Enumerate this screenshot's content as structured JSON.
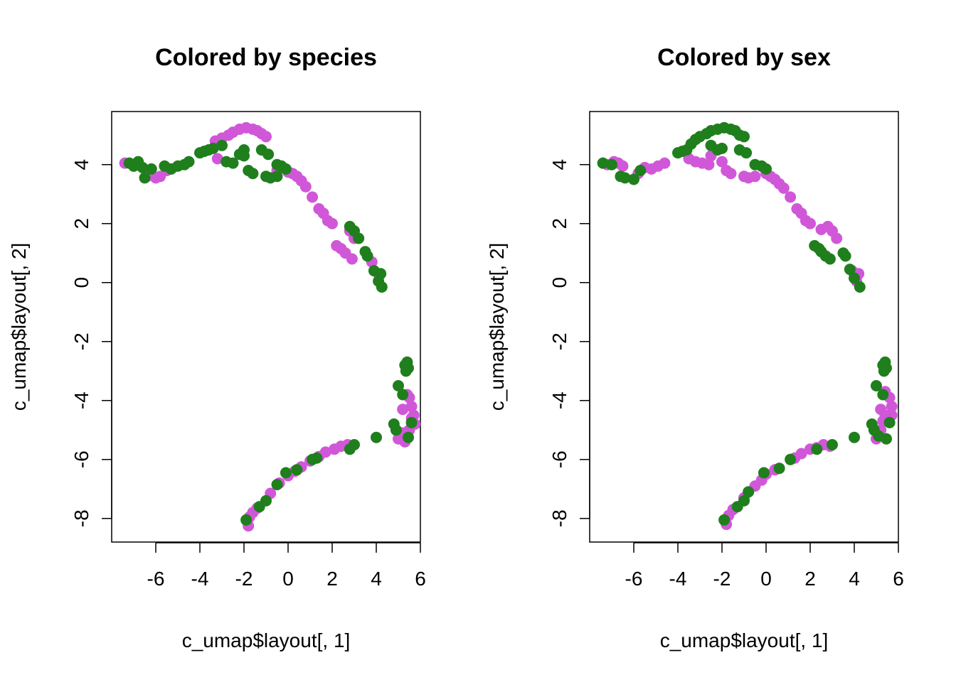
{
  "colors": {
    "magenta": "#d058d8",
    "green": "#1f7f1c"
  },
  "chart_data": [
    {
      "type": "scatter",
      "title": "Colored by species",
      "xlabel": "c_umap$layout[, 1]",
      "ylabel": "c_umap$layout[, 2]",
      "xlim": [
        -8,
        6
      ],
      "ylim": [
        -8.8,
        5.8
      ],
      "xticks": [
        -6,
        -4,
        -2,
        0,
        2,
        4,
        6
      ],
      "yticks": [
        -8,
        -6,
        -4,
        -2,
        0,
        2,
        4
      ],
      "grid": false,
      "series": [
        {
          "color": "#d058d8",
          "points": [
            [
              -7.4,
              4.05
            ],
            [
              -6.4,
              3.6
            ],
            [
              -6.0,
              3.55
            ],
            [
              -5.8,
              3.6
            ],
            [
              -5.5,
              3.8
            ],
            [
              -3.3,
              4.8
            ],
            [
              -3.0,
              4.9
            ],
            [
              -2.7,
              5.0
            ],
            [
              -2.5,
              5.1
            ],
            [
              -3.2,
              4.2
            ],
            [
              -2.2,
              5.2
            ],
            [
              -1.9,
              5.25
            ],
            [
              -1.6,
              5.2
            ],
            [
              -1.4,
              5.15
            ],
            [
              -1.2,
              5.05
            ],
            [
              -1.0,
              4.95
            ],
            [
              -0.5,
              3.8
            ],
            [
              0.0,
              3.75
            ],
            [
              0.2,
              3.7
            ],
            [
              0.4,
              3.6
            ],
            [
              0.6,
              3.45
            ],
            [
              0.8,
              3.25
            ],
            [
              1.1,
              2.9
            ],
            [
              1.4,
              2.5
            ],
            [
              1.6,
              2.35
            ],
            [
              1.8,
              2.1
            ],
            [
              2.0,
              2.0
            ],
            [
              2.2,
              1.25
            ],
            [
              2.4,
              1.15
            ],
            [
              2.6,
              1.0
            ],
            [
              2.9,
              0.8
            ],
            [
              2.8,
              1.75
            ],
            [
              3.0,
              1.5
            ],
            [
              3.8,
              0.7
            ],
            [
              4.1,
              0.3
            ],
            [
              5.2,
              -4.3
            ],
            [
              5.4,
              -3.8
            ],
            [
              5.5,
              -3.9
            ],
            [
              5.6,
              -4.2
            ],
            [
              5.7,
              -4.5
            ],
            [
              5.75,
              -4.8
            ],
            [
              5.5,
              -5.0
            ],
            [
              5.2,
              -5.1
            ],
            [
              5.0,
              -5.3
            ],
            [
              5.3,
              -5.4
            ],
            [
              5.6,
              -4.6
            ],
            [
              -1.8,
              -8.25
            ],
            [
              -1.75,
              -7.95
            ],
            [
              -1.6,
              -7.8
            ],
            [
              -1.4,
              -7.65
            ],
            [
              -0.8,
              -7.15
            ],
            [
              -0.4,
              -6.8
            ],
            [
              0.0,
              -6.55
            ],
            [
              0.3,
              -6.4
            ],
            [
              0.6,
              -6.25
            ],
            [
              1.0,
              -6.05
            ],
            [
              1.4,
              -5.9
            ],
            [
              1.7,
              -5.75
            ],
            [
              2.1,
              -5.65
            ],
            [
              2.4,
              -5.55
            ],
            [
              2.7,
              -5.5
            ]
          ]
        },
        {
          "color": "#1f7f1c",
          "points": [
            [
              -7.2,
              4.05
            ],
            [
              -7.0,
              3.95
            ],
            [
              -6.8,
              4.1
            ],
            [
              -6.6,
              3.9
            ],
            [
              -6.5,
              3.55
            ],
            [
              -6.2,
              3.85
            ],
            [
              -5.6,
              3.95
            ],
            [
              -5.3,
              3.85
            ],
            [
              -5.0,
              3.95
            ],
            [
              -4.7,
              4.0
            ],
            [
              -4.5,
              4.1
            ],
            [
              -4.0,
              4.4
            ],
            [
              -3.8,
              4.45
            ],
            [
              -3.6,
              4.5
            ],
            [
              -3.4,
              4.55
            ],
            [
              -3.0,
              4.65
            ],
            [
              -2.8,
              4.1
            ],
            [
              -2.5,
              4.05
            ],
            [
              -2.2,
              4.35
            ],
            [
              -2.0,
              4.3
            ],
            [
              -2.0,
              4.5
            ],
            [
              -1.8,
              3.8
            ],
            [
              -1.6,
              3.7
            ],
            [
              -1.2,
              4.5
            ],
            [
              -0.9,
              4.35
            ],
            [
              -1.0,
              3.6
            ],
            [
              -0.8,
              3.55
            ],
            [
              -0.5,
              3.6
            ],
            [
              -0.5,
              4.0
            ],
            [
              -0.3,
              3.95
            ],
            [
              -0.1,
              3.85
            ],
            [
              2.8,
              1.9
            ],
            [
              3.0,
              1.75
            ],
            [
              3.2,
              1.5
            ],
            [
              3.5,
              1.05
            ],
            [
              3.6,
              0.9
            ],
            [
              3.9,
              0.4
            ],
            [
              4.2,
              0.3
            ],
            [
              4.1,
              0.05
            ],
            [
              4.25,
              -0.15
            ],
            [
              5.3,
              -2.8
            ],
            [
              5.4,
              -2.7
            ],
            [
              5.45,
              -2.9
            ],
            [
              5.35,
              -3.0
            ],
            [
              5.0,
              -3.5
            ],
            [
              5.2,
              -3.8
            ],
            [
              4.8,
              -4.8
            ],
            [
              4.9,
              -5.0
            ],
            [
              5.6,
              -4.75
            ],
            [
              5.45,
              -5.25
            ],
            [
              4.0,
              -5.25
            ],
            [
              3.0,
              -5.5
            ],
            [
              2.8,
              -5.65
            ],
            [
              1.3,
              -5.95
            ],
            [
              1.1,
              -6.0
            ],
            [
              0.4,
              -6.35
            ],
            [
              -0.1,
              -6.45
            ],
            [
              -0.5,
              -6.85
            ],
            [
              -1.0,
              -7.4
            ],
            [
              -1.3,
              -7.6
            ],
            [
              -1.9,
              -8.05
            ]
          ]
        }
      ]
    },
    {
      "type": "scatter",
      "title": "Colored by sex",
      "xlabel": "c_umap$layout[, 1]",
      "ylabel": "c_umap$layout[, 2]",
      "xlim": [
        -8,
        6
      ],
      "ylim": [
        -8.8,
        5.8
      ],
      "xticks": [
        -6,
        -4,
        -2,
        0,
        2,
        4,
        6
      ],
      "yticks": [
        -8,
        -6,
        -4,
        -2,
        0,
        2,
        4
      ],
      "grid": false,
      "series": [
        {
          "color": "#d058d8",
          "points": [
            [
              -7.2,
              4.0
            ],
            [
              -6.9,
              4.1
            ],
            [
              -6.7,
              4.05
            ],
            [
              -6.5,
              3.95
            ],
            [
              -5.8,
              3.7
            ],
            [
              -5.5,
              3.9
            ],
            [
              -5.2,
              3.85
            ],
            [
              -4.9,
              3.95
            ],
            [
              -4.6,
              4.05
            ],
            [
              -3.5,
              4.2
            ],
            [
              -3.2,
              4.1
            ],
            [
              -2.9,
              4.05
            ],
            [
              -2.6,
              4.0
            ],
            [
              -2.5,
              4.3
            ],
            [
              -2.0,
              4.1
            ],
            [
              -1.8,
              3.8
            ],
            [
              -1.6,
              3.7
            ],
            [
              -1.0,
              3.6
            ],
            [
              -0.8,
              3.55
            ],
            [
              -0.5,
              3.6
            ],
            [
              0.0,
              3.7
            ],
            [
              0.2,
              3.6
            ],
            [
              0.4,
              3.5
            ],
            [
              0.6,
              3.35
            ],
            [
              0.8,
              3.2
            ],
            [
              1.1,
              2.9
            ],
            [
              1.4,
              2.5
            ],
            [
              1.6,
              2.35
            ],
            [
              1.8,
              2.1
            ],
            [
              2.0,
              2.0
            ],
            [
              2.5,
              1.8
            ],
            [
              2.8,
              1.9
            ],
            [
              3.0,
              1.75
            ],
            [
              3.2,
              1.5
            ],
            [
              3.9,
              0.4
            ],
            [
              4.2,
              0.3
            ],
            [
              4.1,
              0.05
            ],
            [
              5.2,
              -4.3
            ],
            [
              5.4,
              -3.7
            ],
            [
              5.6,
              -3.9
            ],
            [
              5.7,
              -4.2
            ],
            [
              5.7,
              -4.5
            ],
            [
              5.4,
              -4.5
            ],
            [
              5.3,
              -4.7
            ],
            [
              5.2,
              -5.0
            ],
            [
              5.0,
              -5.3
            ],
            [
              -1.8,
              -8.2
            ],
            [
              -1.7,
              -7.9
            ],
            [
              -1.5,
              -7.7
            ],
            [
              -1.0,
              -7.3
            ],
            [
              -0.8,
              -7.1
            ],
            [
              -0.5,
              -6.9
            ],
            [
              -0.2,
              -6.7
            ],
            [
              0.0,
              -6.5
            ],
            [
              0.4,
              -6.35
            ],
            [
              1.3,
              -5.95
            ],
            [
              1.6,
              -5.8
            ],
            [
              2.0,
              -5.65
            ],
            [
              2.3,
              -5.6
            ],
            [
              2.6,
              -5.5
            ],
            [
              2.9,
              -5.55
            ]
          ]
        },
        {
          "color": "#1f7f1c",
          "points": [
            [
              -7.4,
              4.05
            ],
            [
              -7.0,
              4.0
            ],
            [
              -6.6,
              3.6
            ],
            [
              -6.4,
              3.55
            ],
            [
              -6.0,
              3.5
            ],
            [
              -5.7,
              3.8
            ],
            [
              -4.0,
              4.4
            ],
            [
              -3.8,
              4.45
            ],
            [
              -3.6,
              4.5
            ],
            [
              -3.4,
              4.7
            ],
            [
              -3.2,
              4.85
            ],
            [
              -3.0,
              4.95
            ],
            [
              -2.7,
              5.05
            ],
            [
              -2.5,
              5.15
            ],
            [
              -2.2,
              5.2
            ],
            [
              -1.9,
              5.25
            ],
            [
              -1.6,
              5.2
            ],
            [
              -1.4,
              5.15
            ],
            [
              -1.2,
              5.0
            ],
            [
              -1.0,
              4.95
            ],
            [
              -2.5,
              4.65
            ],
            [
              -2.2,
              4.5
            ],
            [
              -2.0,
              4.55
            ],
            [
              -1.2,
              4.5
            ],
            [
              -0.9,
              4.4
            ],
            [
              -0.5,
              4.0
            ],
            [
              -0.2,
              3.95
            ],
            [
              0.0,
              3.85
            ],
            [
              2.2,
              1.25
            ],
            [
              2.4,
              1.15
            ],
            [
              2.5,
              1.05
            ],
            [
              2.7,
              0.9
            ],
            [
              2.9,
              0.8
            ],
            [
              3.5,
              1.0
            ],
            [
              3.6,
              0.9
            ],
            [
              3.8,
              0.45
            ],
            [
              4.0,
              0.15
            ],
            [
              4.25,
              -0.15
            ],
            [
              5.3,
              -2.8
            ],
            [
              5.4,
              -2.7
            ],
            [
              5.45,
              -2.9
            ],
            [
              5.35,
              -3.0
            ],
            [
              5.0,
              -3.5
            ],
            [
              5.3,
              -3.8
            ],
            [
              4.8,
              -4.8
            ],
            [
              4.9,
              -5.0
            ],
            [
              5.6,
              -4.75
            ],
            [
              5.45,
              -5.3
            ],
            [
              5.1,
              -5.2
            ],
            [
              4.0,
              -5.25
            ],
            [
              3.0,
              -5.5
            ],
            [
              2.3,
              -5.65
            ],
            [
              1.1,
              -6.0
            ],
            [
              0.6,
              -6.3
            ],
            [
              -0.1,
              -6.45
            ],
            [
              -0.8,
              -7.1
            ],
            [
              -1.0,
              -7.4
            ],
            [
              -1.3,
              -7.6
            ],
            [
              -1.9,
              -8.05
            ]
          ]
        }
      ]
    }
  ]
}
